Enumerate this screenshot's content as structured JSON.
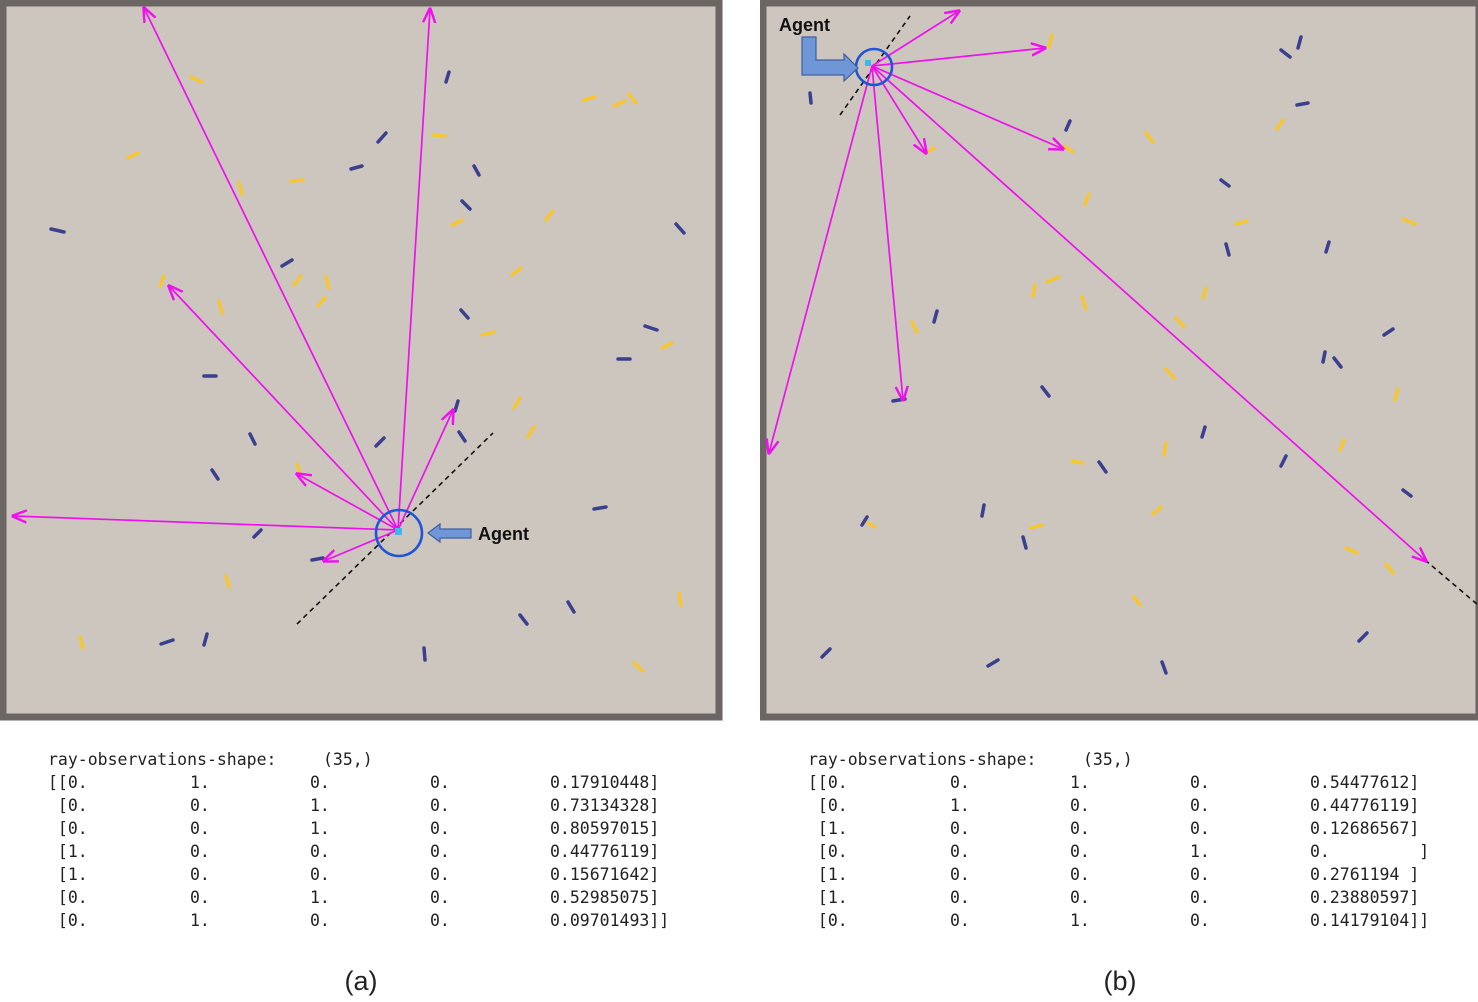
{
  "panels": [
    {
      "caption": "(a)",
      "agent_label": "Agent",
      "observations": {
        "shape_label": "ray-observations-shape:",
        "shape_value": "(35,)",
        "rows": [
          [
            "[[0.",
            "1.",
            "0.",
            "0.",
            "0.17910448]"
          ],
          [
            " [0.",
            "0.",
            "1.",
            "0.",
            "0.73134328]"
          ],
          [
            " [0.",
            "0.",
            "1.",
            "0.",
            "0.80597015]"
          ],
          [
            " [1.",
            "0.",
            "0.",
            "0.",
            "0.44776119]"
          ],
          [
            " [1.",
            "0.",
            "0.",
            "0.",
            "0.15671642]"
          ],
          [
            " [0.",
            "0.",
            "1.",
            "0.",
            "0.52985075]"
          ],
          [
            " [0.",
            "1.",
            "0.",
            "0.",
            "0.09701493]]"
          ]
        ]
      }
    },
    {
      "caption": "(b)",
      "agent_label": "Agent",
      "observations": {
        "shape_label": "ray-observations-shape:",
        "shape_value": "(35,)",
        "rows": [
          [
            "[[0.",
            "0.",
            "1.",
            "0.",
            "0.54477612]"
          ],
          [
            " [0.",
            "1.",
            "0.",
            "0.",
            "0.44776119]"
          ],
          [
            " [1.",
            "0.",
            "0.",
            "0.",
            "0.12686567]"
          ],
          [
            " [0.",
            "0.",
            "0.",
            "1.",
            "0.         ]"
          ],
          [
            " [1.",
            "0.",
            "0.",
            "0.",
            "0.2761194 ]"
          ],
          [
            " [1.",
            "0.",
            "0.",
            "0.",
            "0.23880597]"
          ],
          [
            " [0.",
            "0.",
            "1.",
            "0.",
            "0.14179104]]"
          ]
        ]
      }
    }
  ],
  "colors": {
    "arena_fill": "#cdc6bf",
    "arena_border": "#6b6663",
    "ray": "#ee11ee",
    "agent_ring": "#1f55d6",
    "agent_body": "#3fb6ef",
    "callout_arrow": "#6f97d8",
    "good_item": "#f6c633",
    "bad_item": "#3a3f8e"
  }
}
